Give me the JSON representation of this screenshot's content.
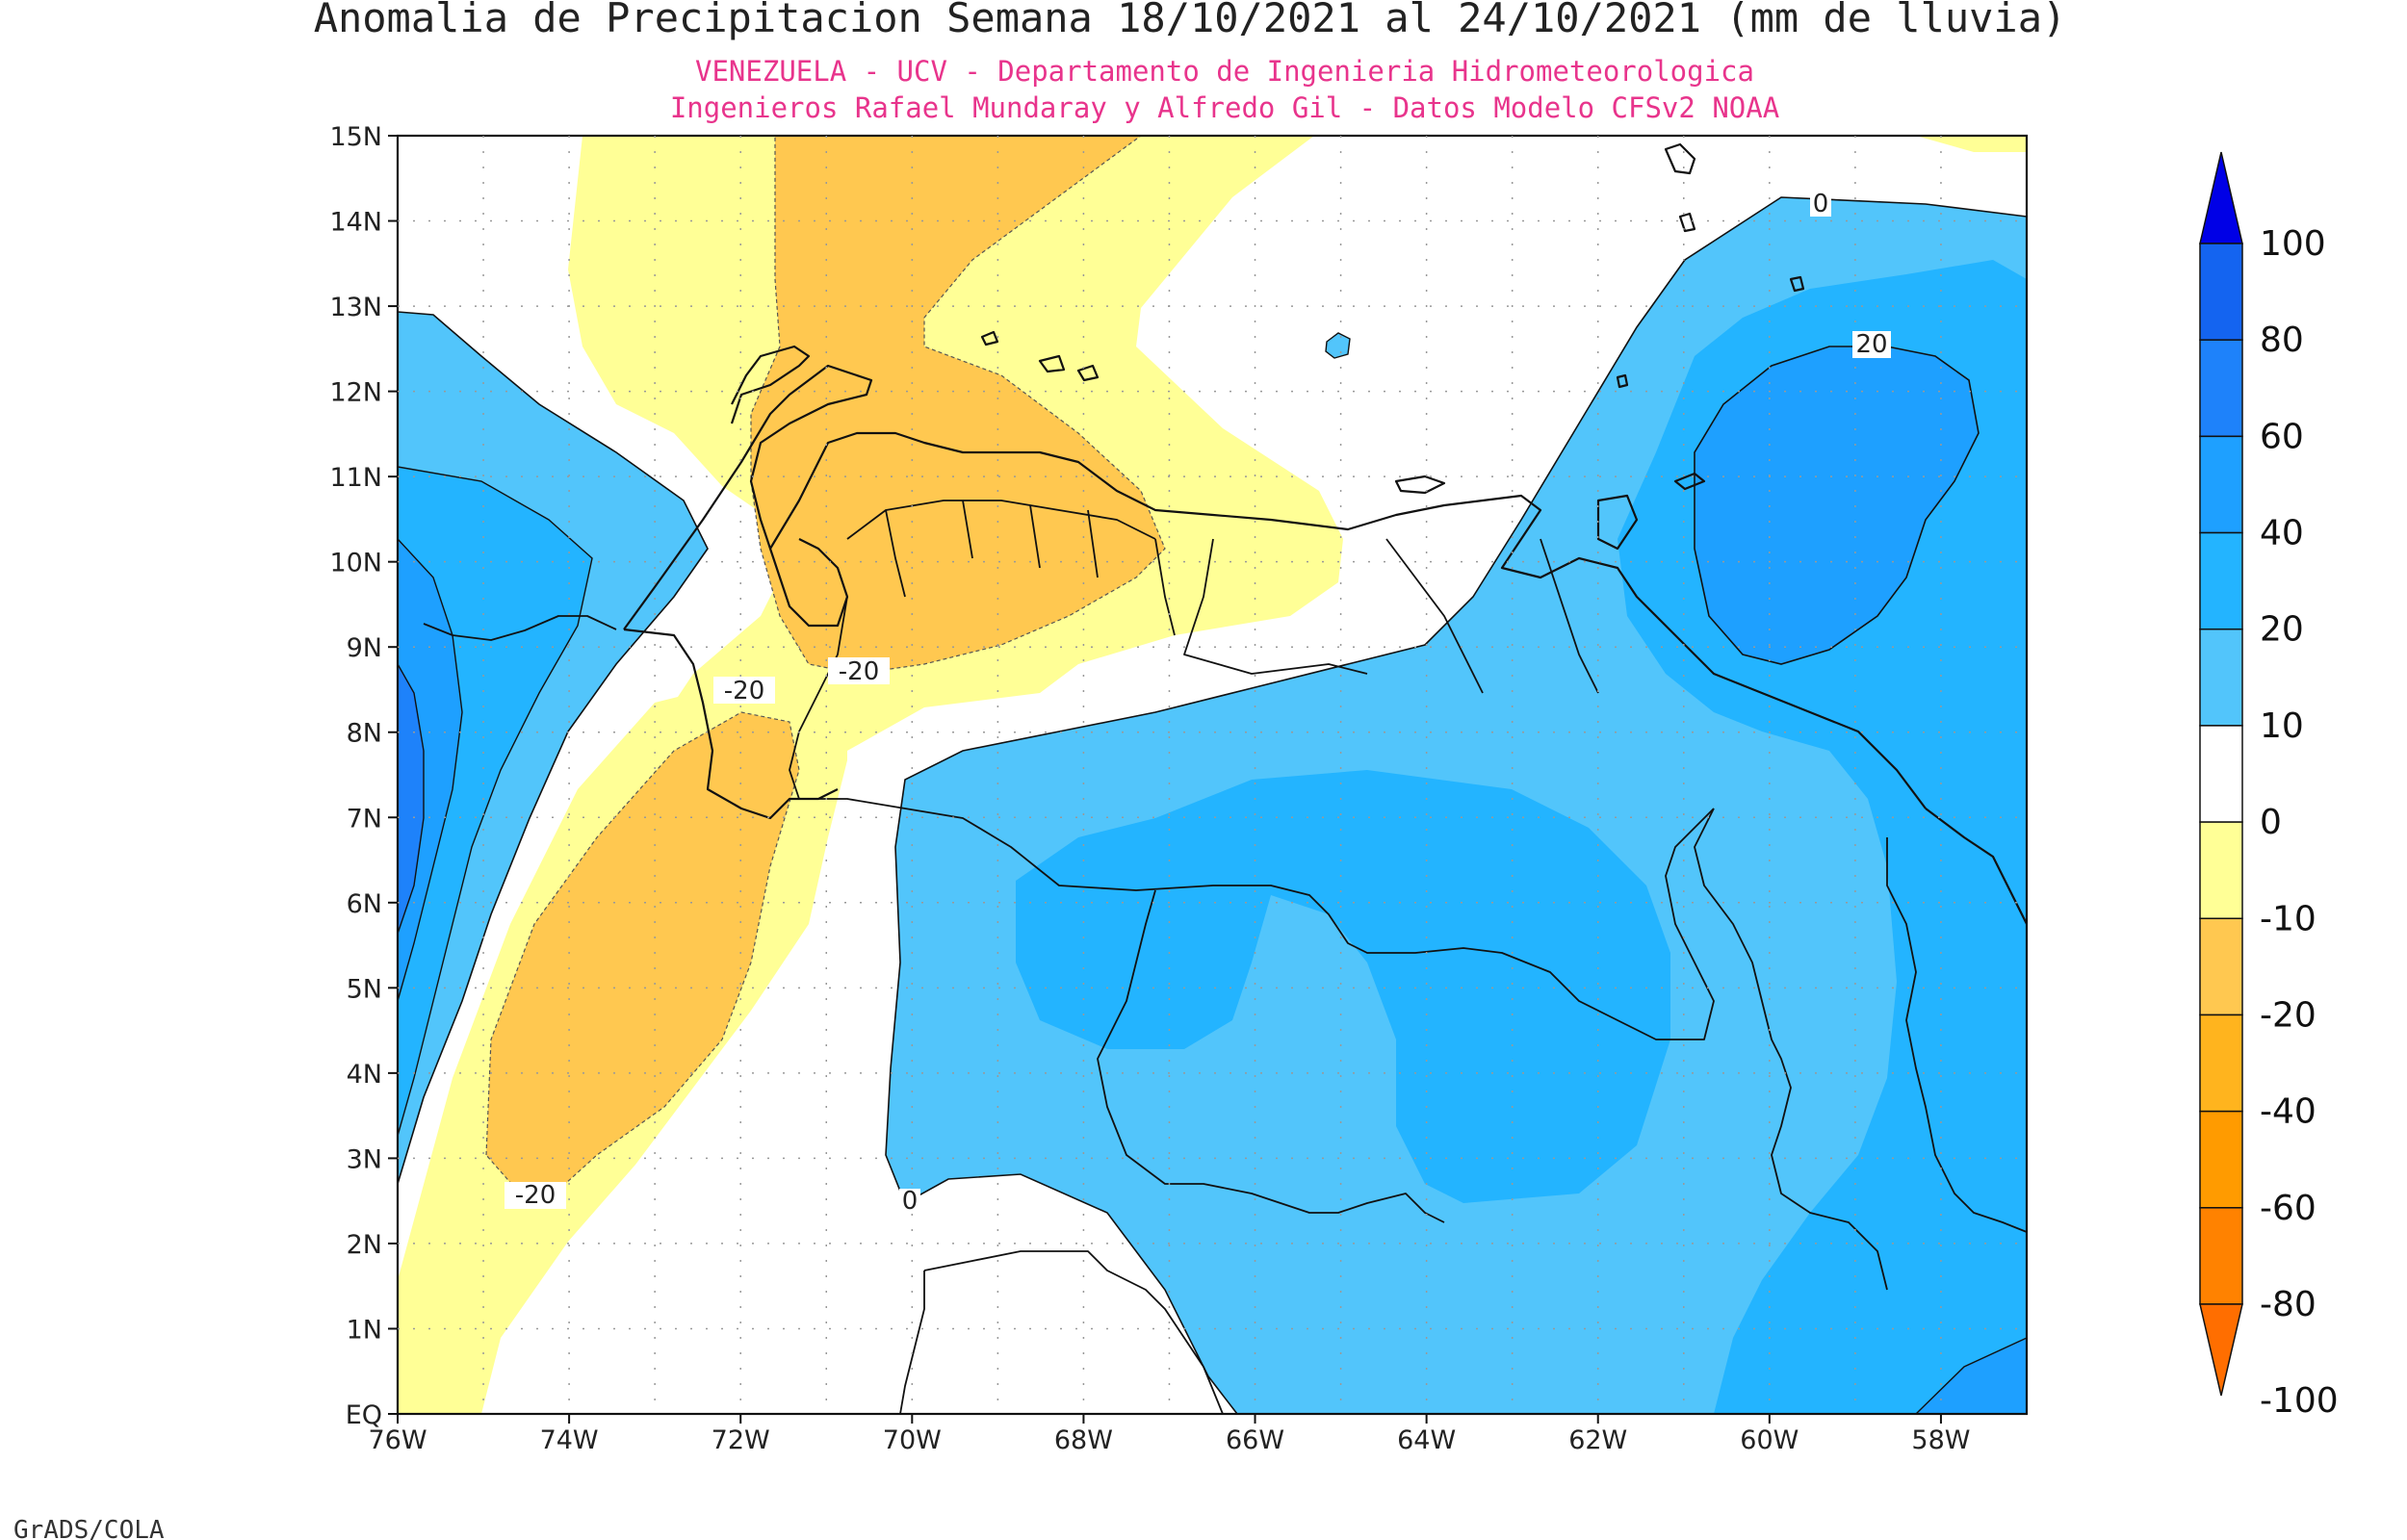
{
  "title": "Anomalia de Precipitacion Semana 18/10/2021 al 24/10/2021 (mm de lluvia)",
  "subtitle1": "VENEZUELA - UCV - Departamento de Ingenieria Hidrometeorologica",
  "subtitle2": "Ingenieros Rafael Mundaray y Alfredo Gil - Datos Modelo CFSv2 NOAA",
  "footer": "GrADS/COLA",
  "lat_labels": [
    "15N",
    "14N",
    "13N",
    "12N",
    "11N",
    "10N",
    "9N",
    "8N",
    "7N",
    "6N",
    "5N",
    "4N",
    "3N",
    "2N",
    "1N",
    "EQ"
  ],
  "lon_labels": [
    "76W",
    "74W",
    "72W",
    "70W",
    "68W",
    "66W",
    "64W",
    "62W",
    "60W",
    "58W"
  ],
  "contour_labels": {
    "zero_north": "0",
    "twenty_east": "20",
    "neg20_a": "-20",
    "neg20_b": "-20",
    "neg20_c": "-20",
    "zero_south": "0"
  },
  "colorbar": {
    "levels": [
      "100",
      "80",
      "60",
      "40",
      "20",
      "10",
      "0",
      "-10",
      "-20",
      "-40",
      "-60",
      "-80",
      "-100"
    ],
    "colors": [
      "#0000e6",
      "#1464f0",
      "#1e82fa",
      "#1ea0ff",
      "#23b4ff",
      "#52c5fb",
      "#ffffff",
      "#ffff96",
      "#ffc850",
      "#ffb41e",
      "#ff9b00",
      "#ff8200",
      "#ff6e00"
    ]
  }
}
